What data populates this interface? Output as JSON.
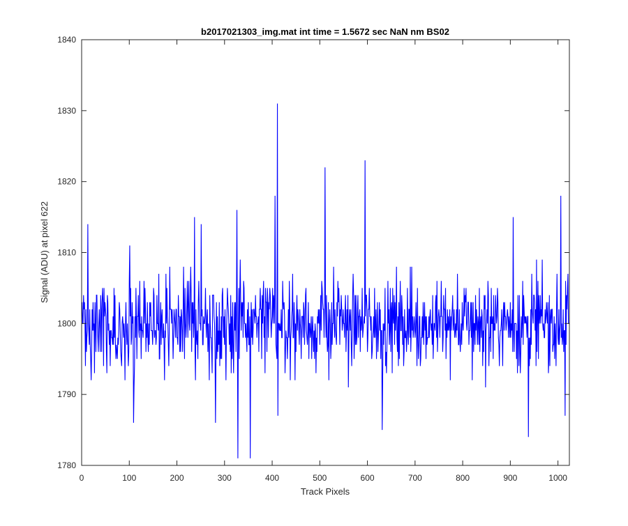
{
  "chart_data": {
    "type": "line",
    "title": "b2017021303_img.mat int time = 1.5672 sec  NaN nm BS02",
    "xlabel": "Track Pixels",
    "ylabel": "Signal (ADU) at pixel 622",
    "xlim": [
      0,
      1024
    ],
    "ylim": [
      1780,
      1840
    ],
    "xticks": [
      0,
      100,
      200,
      300,
      400,
      500,
      600,
      700,
      800,
      900,
      1000
    ],
    "yticks": [
      1780,
      1790,
      1800,
      1810,
      1820,
      1830,
      1840
    ],
    "grid": false,
    "series": [
      {
        "color": "#0000ff",
        "n_points": 1024,
        "baseline_mean": 1800,
        "noise_range": [
          1785,
          1815
        ],
        "annotated_points": [
          {
            "x": 12,
            "y": 1814
          },
          {
            "x": 100,
            "y": 1811
          },
          {
            "x": 108,
            "y": 1786
          },
          {
            "x": 236,
            "y": 1815
          },
          {
            "x": 250,
            "y": 1814
          },
          {
            "x": 280,
            "y": 1786
          },
          {
            "x": 325,
            "y": 1816
          },
          {
            "x": 327,
            "y": 1781
          },
          {
            "x": 353,
            "y": 1781
          },
          {
            "x": 405,
            "y": 1818
          },
          {
            "x": 410,
            "y": 1831
          },
          {
            "x": 411,
            "y": 1787
          },
          {
            "x": 510,
            "y": 1822
          },
          {
            "x": 594,
            "y": 1823
          },
          {
            "x": 630,
            "y": 1785
          },
          {
            "x": 905,
            "y": 1815
          },
          {
            "x": 937,
            "y": 1784
          },
          {
            "x": 1005,
            "y": 1818
          },
          {
            "x": 1014,
            "y": 1787
          }
        ]
      }
    ]
  }
}
